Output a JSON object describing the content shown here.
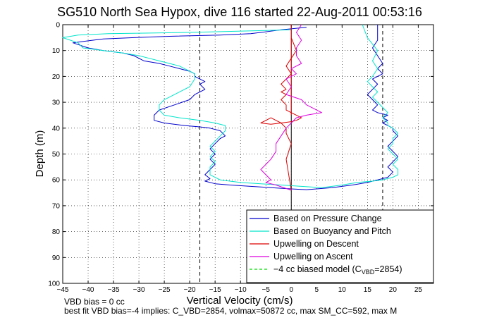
{
  "chart_data": {
    "type": "line",
    "title": "SG510 North Sea Hypox, dive 116 started 22-Aug-2011 00:53:16",
    "xlabel": "Vertical Velocity (cm/s)",
    "ylabel": "Depth (m)",
    "xlim": [
      -45,
      28
    ],
    "ylim": [
      100,
      0
    ],
    "y_reversed": true,
    "grid": true,
    "legend_position": "bottom-right",
    "xticks": [
      -45,
      -40,
      -35,
      -30,
      -25,
      -20,
      -15,
      -10,
      -5,
      0,
      5,
      10,
      15,
      20,
      25
    ],
    "yticks": [
      0,
      10,
      20,
      30,
      40,
      50,
      60,
      70,
      80,
      90,
      100
    ],
    "series": [
      {
        "name": "Based on Pressure Change",
        "color": "#0000cc",
        "x": [
          3,
          -2,
          -6,
          -8,
          -14,
          -24,
          -31,
          -37,
          -39,
          -43,
          -40,
          -37,
          -33,
          -31,
          -30,
          -29,
          -26,
          -24,
          -22,
          -20,
          -19,
          -19,
          -18,
          -17,
          -18,
          -17,
          -19,
          -20,
          -23,
          -26,
          -27,
          -27,
          -25,
          -21,
          -18,
          -16,
          -14,
          -13,
          -14,
          -15,
          -16,
          -15,
          -16,
          -15,
          -16,
          -17,
          -16,
          -17,
          -15,
          -12,
          -8,
          -4,
          0,
          3,
          8,
          12,
          15,
          17,
          19,
          20,
          19,
          20,
          21,
          20,
          19,
          20,
          21,
          20,
          20,
          19,
          18,
          19,
          18,
          19,
          17,
          16,
          17,
          16,
          15,
          16,
          17,
          16,
          18,
          17,
          18,
          17,
          16,
          17,
          17,
          17
        ],
        "y": [
          1,
          2,
          3,
          3.5,
          4,
          4.5,
          5,
          5.5,
          6,
          7,
          9,
          10,
          11,
          12,
          13,
          14,
          15,
          16,
          17,
          18,
          19,
          20,
          21,
          22,
          23,
          25,
          27,
          29,
          31,
          33,
          35,
          37,
          38,
          39,
          39.5,
          40,
          41,
          43,
          44,
          46,
          48,
          50,
          52,
          54,
          56,
          58,
          59.5,
          60.5,
          61.5,
          62,
          62.5,
          63,
          63.5,
          63.8,
          63,
          62,
          61,
          60,
          59,
          57,
          55,
          53,
          51,
          49,
          47,
          45,
          43,
          41,
          40,
          39,
          38,
          37,
          36,
          35,
          34,
          33,
          31,
          29,
          27,
          25,
          23,
          21,
          19,
          17,
          15,
          12,
          9,
          6,
          3,
          0
        ]
      },
      {
        "name": "Based on Buoyancy and Pitch",
        "color": "#00e5cc",
        "x": [
          0,
          -20,
          -36,
          -42,
          -45,
          -42,
          -41,
          -37,
          -33,
          -30,
          -28,
          -26,
          -24,
          -22,
          -21,
          -20,
          -19,
          -19,
          -20,
          -22,
          -24,
          -25,
          -26,
          -26,
          -25,
          -22,
          -18,
          -15,
          -13,
          -13,
          -14,
          -15,
          -16,
          -15,
          -16,
          -15,
          -16,
          -16,
          -14,
          -10,
          -6,
          -2,
          2,
          6,
          10,
          13,
          16,
          18,
          20,
          21,
          21,
          20,
          21,
          20,
          19,
          20,
          20,
          21,
          20,
          19,
          19,
          18,
          19,
          18,
          17,
          16,
          17,
          16,
          15,
          16,
          17,
          16,
          17,
          15,
          14
        ],
        "y": [
          2,
          3,
          3.5,
          4,
          5,
          7,
          9,
          10,
          11,
          12,
          13,
          14,
          15,
          16,
          17,
          18,
          19,
          21,
          24,
          26,
          28,
          29,
          31,
          33,
          35,
          36,
          37,
          38,
          39,
          41,
          43,
          45,
          47,
          49,
          51,
          53,
          55,
          58,
          60,
          61,
          61.5,
          62,
          62.5,
          63,
          62,
          61,
          60.5,
          60,
          59,
          58,
          56,
          54,
          52,
          50,
          48,
          46,
          44,
          42,
          40,
          39,
          38,
          36,
          34,
          32,
          30,
          28,
          26,
          24,
          22,
          20,
          17,
          14,
          10,
          5,
          0
        ]
      },
      {
        "name": "Upwelling on Descent",
        "color": "#dd0000",
        "x": [
          0,
          0,
          0,
          1,
          0,
          -1,
          0,
          -1,
          -2,
          -1,
          -2,
          -1,
          -2,
          -1,
          -1,
          0,
          1,
          2,
          1,
          0,
          -2,
          -4,
          -6,
          -5,
          -4,
          -3,
          -2,
          -1,
          -1,
          0,
          -1,
          0
        ],
        "y": [
          35,
          0,
          5,
          10,
          13,
          16,
          19,
          21,
          23,
          25,
          26,
          27,
          29,
          31,
          33,
          34,
          35,
          36,
          37,
          37.5,
          38,
          38.5,
          38,
          37,
          36,
          37,
          38,
          40,
          42,
          46,
          52,
          64
        ]
      },
      {
        "name": "Upwelling on Ascent",
        "color": "#dd00dd",
        "x": [
          2,
          1,
          2,
          1,
          1,
          2,
          0,
          1,
          -1,
          0,
          -1,
          2,
          3,
          4,
          6,
          3,
          1,
          0,
          -1,
          -2,
          -3,
          -3,
          -4,
          -5,
          -6,
          -5,
          -4,
          -5,
          -3,
          0
        ],
        "y": [
          0,
          3,
          6,
          9,
          12,
          15,
          17,
          19,
          21,
          24,
          27,
          29,
          31,
          32,
          34,
          35,
          36,
          38,
          40,
          43,
          46,
          49,
          52,
          54,
          56,
          58,
          60,
          61,
          62,
          64
        ]
      },
      {
        "name": "-4 cc biased model (CVBD=2854)",
        "legend_label_html": "&#8722;4 cc biased model (C<tspan baseline-shift='sub' font-size='9'>VBD</tspan>=2854)",
        "color": "#00dd00",
        "dashed": true,
        "x": [],
        "y": []
      }
    ],
    "reference_lines": [
      {
        "x": -18,
        "style": "dashed",
        "color": "#000000"
      },
      {
        "x": 18,
        "style": "dashed",
        "color": "#000000"
      },
      {
        "x": 0,
        "style": "solid",
        "color": "#000000"
      }
    ],
    "annotations": [
      "VBD bias = 0 cc",
      "best fit VBD bias=-4 implies: C_VBD=2854, volmax=50872 cc, max SM_CC=592, max M"
    ]
  },
  "legend": {
    "entries": [
      "Based on Pressure Change",
      "Based on Buoyancy and Pitch",
      "Upwelling on Descent",
      "Upwelling on Ascent"
    ],
    "biased_prefix": "−4 cc biased model (C",
    "biased_sub": "VBD",
    "biased_suffix": "=2854)"
  }
}
